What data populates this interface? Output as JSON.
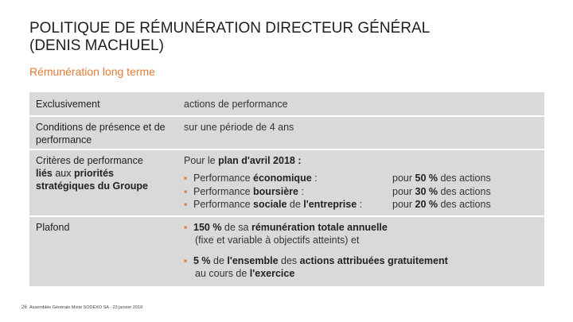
{
  "header": {
    "title_line1": "POLITIQUE DE RÉMUNÉRATION DIRECTEUR GÉNÉRAL",
    "title_line2": "(DENIS MACHUEL)",
    "subtitle": "Rémunération long terme"
  },
  "rows": {
    "exclusivement": {
      "label": "Exclusivement",
      "value": "actions de performance"
    },
    "conditions": {
      "label": "Conditions de présence et de performance",
      "value": "sur une période de 4 ans"
    },
    "criteres": {
      "label_a": "Critères de performance",
      "label_b": "liés",
      "label_c": " aux ",
      "label_d": "priorités stratégiques du Groupe",
      "intro_a": "Pour le ",
      "intro_b": "plan d'avril 2018 :",
      "perf": [
        {
          "pre": "Performance ",
          "bold": "économique",
          "post": " :",
          "value_pre": "pour ",
          "value_bold": "50 %",
          "value_post": " des actions"
        },
        {
          "pre": "Performance ",
          "bold": "boursière",
          "post": " :",
          "value_pre": "pour ",
          "value_bold": "30 %",
          "value_post": " des actions"
        },
        {
          "pre": "Performance ",
          "bold": "sociale",
          "post": " de ",
          "bold2": "l'entreprise",
          "post2": " :",
          "value_pre": "pour ",
          "value_bold": "20 %",
          "value_post": " des actions"
        }
      ]
    },
    "plafond": {
      "label": "Plafond",
      "b1_bold": "150 %",
      "b1_text": " de sa ",
      "b1_bold2": "rémunération totale annuelle",
      "b1_line2": "(fixe et variable à objectifs atteints) et",
      "b2_bold": "5 %",
      "b2_text": " de ",
      "b2_bold2": "l'ensemble",
      "b2_text2": " des ",
      "b2_bold3": "actions attribuées gratuitement",
      "b2_line2_pre": "au cours de ",
      "b2_line2_bold": "l'exercice"
    }
  },
  "footer": {
    "page_number": "26",
    "text": "Assemblée Générale Mixte SODEXO SA - 23 janvier 2018"
  },
  "colors": {
    "accent": "#e07b39",
    "table_bg": "#d9d9d9"
  }
}
